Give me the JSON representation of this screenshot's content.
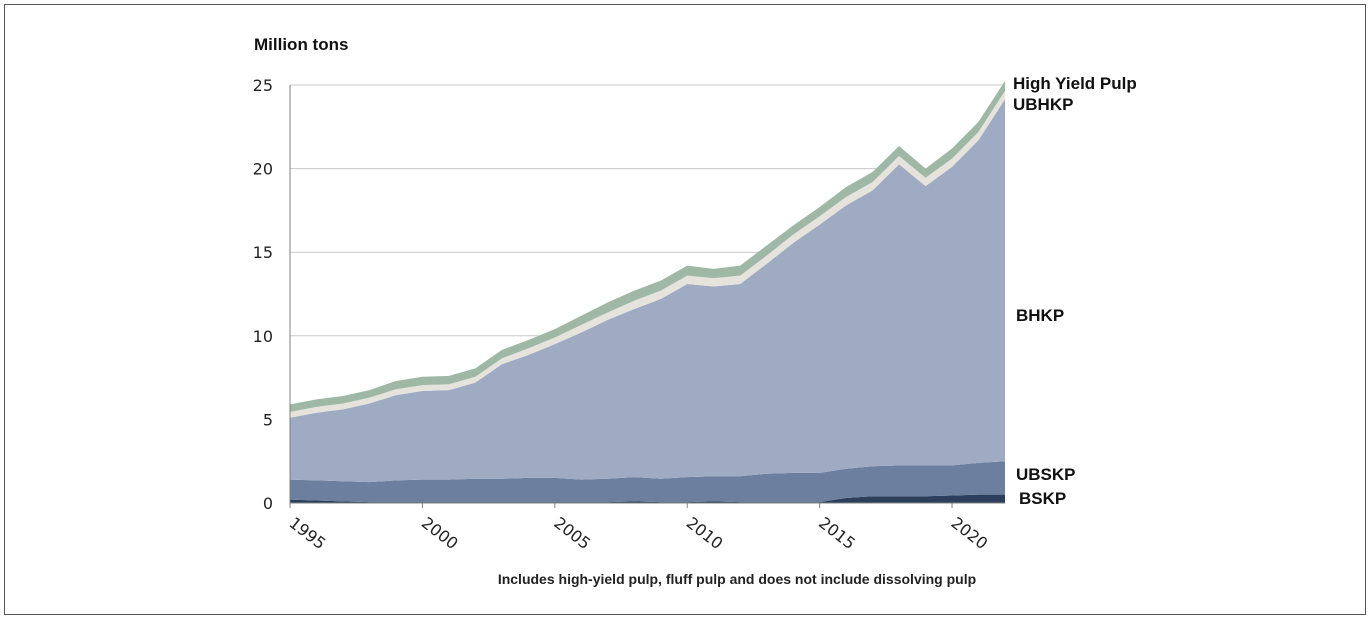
{
  "chart_data": {
    "type": "area",
    "stacked": true,
    "ylabel": "Million tons",
    "note": "Includes high-yield pulp, fluff pulp and does not include dissolving pulp",
    "ylim": [
      0,
      25
    ],
    "xlim": [
      1995,
      2022
    ],
    "yticks": [
      "0",
      "5",
      "10",
      "15",
      "20",
      "25"
    ],
    "xticks": [
      "1995",
      "2000",
      "2005",
      "2010",
      "2015",
      "2020"
    ],
    "grid": true,
    "x": [
      1995,
      1996,
      1997,
      1998,
      1999,
      2000,
      2001,
      2002,
      2003,
      2004,
      2005,
      2006,
      2007,
      2008,
      2009,
      2010,
      2011,
      2012,
      2013,
      2014,
      2015,
      2016,
      2017,
      2018,
      2019,
      2020,
      2021,
      2022
    ],
    "series": [
      {
        "name": "BSKP",
        "color": "#2b3f5c",
        "values": [
          0.2,
          0.15,
          0.1,
          0.05,
          0.05,
          0.05,
          0.05,
          0.05,
          0.05,
          0.05,
          0.05,
          0.05,
          0.05,
          0.1,
          0.05,
          0.05,
          0.1,
          0.05,
          0.05,
          0.05,
          0.05,
          0.3,
          0.4,
          0.4,
          0.4,
          0.45,
          0.5,
          0.5
        ]
      },
      {
        "name": "UBSKP",
        "color": "#6c7f9e",
        "values": [
          1.2,
          1.2,
          1.2,
          1.2,
          1.3,
          1.35,
          1.35,
          1.4,
          1.4,
          1.45,
          1.45,
          1.35,
          1.4,
          1.45,
          1.4,
          1.5,
          1.5,
          1.55,
          1.7,
          1.75,
          1.75,
          1.75,
          1.8,
          1.85,
          1.85,
          1.8,
          1.9,
          2.0
        ]
      },
      {
        "name": "BHKP",
        "color": "#9eabc3",
        "values": [
          3.7,
          4.05,
          4.3,
          4.7,
          5.1,
          5.3,
          5.35,
          5.75,
          6.85,
          7.35,
          8.0,
          8.8,
          9.5,
          10.05,
          10.75,
          11.55,
          11.35,
          11.5,
          12.55,
          13.75,
          14.85,
          15.75,
          16.5,
          18.0,
          16.7,
          17.85,
          19.3,
          21.65
        ]
      },
      {
        "name": "UBHKP",
        "color": "#e5e3dc",
        "values": [
          0.35,
          0.35,
          0.35,
          0.35,
          0.35,
          0.35,
          0.35,
          0.35,
          0.35,
          0.4,
          0.4,
          0.45,
          0.45,
          0.5,
          0.5,
          0.5,
          0.5,
          0.5,
          0.5,
          0.5,
          0.5,
          0.5,
          0.5,
          0.5,
          0.5,
          0.5,
          0.5,
          0.5
        ]
      },
      {
        "name": "High Yield Pulp",
        "color": "#9fb8a5",
        "values": [
          0.45,
          0.45,
          0.45,
          0.45,
          0.5,
          0.5,
          0.5,
          0.5,
          0.5,
          0.5,
          0.5,
          0.55,
          0.6,
          0.6,
          0.6,
          0.6,
          0.55,
          0.6,
          0.6,
          0.55,
          0.55,
          0.6,
          0.6,
          0.6,
          0.55,
          0.6,
          0.6,
          0.6
        ]
      }
    ]
  }
}
